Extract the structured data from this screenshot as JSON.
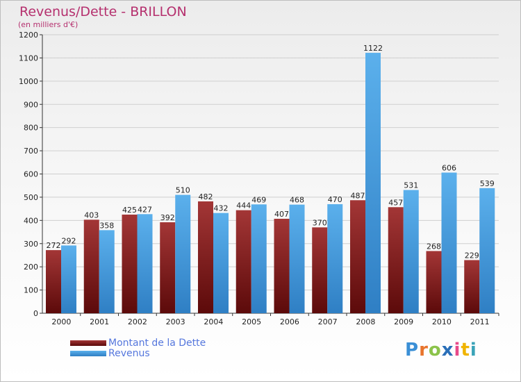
{
  "page": {
    "title": "Revenus/Dette - BRILLON",
    "subtitle": "(en milliers d'€)",
    "logo_text": "Proxiti"
  },
  "colors": {
    "dette": "#7a1a1a",
    "revenus": "#4ea1e0",
    "title": "#b5306e",
    "legend_text": "#5577dd",
    "grid": "#cfcfcf"
  },
  "chart_data": {
    "type": "bar",
    "title": "Revenus/Dette - BRILLON",
    "subtitle": "(en milliers d'€)",
    "categories": [
      "2000",
      "2001",
      "2002",
      "2003",
      "2004",
      "2005",
      "2006",
      "2007",
      "2008",
      "2009",
      "2010",
      "2011"
    ],
    "series": [
      {
        "name": "Montant de la Dette",
        "values": [
          272,
          403,
          425,
          392,
          482,
          444,
          407,
          370,
          487,
          457,
          268,
          229
        ]
      },
      {
        "name": "Revenus",
        "values": [
          292,
          358,
          427,
          510,
          432,
          469,
          468,
          470,
          1122,
          531,
          606,
          539
        ]
      }
    ],
    "ylim": [
      0,
      1200
    ],
    "yticks": [
      0,
      100,
      200,
      300,
      400,
      500,
      600,
      700,
      800,
      900,
      1000,
      1100,
      1200
    ],
    "grid": true,
    "legend_position": "bottom-left"
  }
}
